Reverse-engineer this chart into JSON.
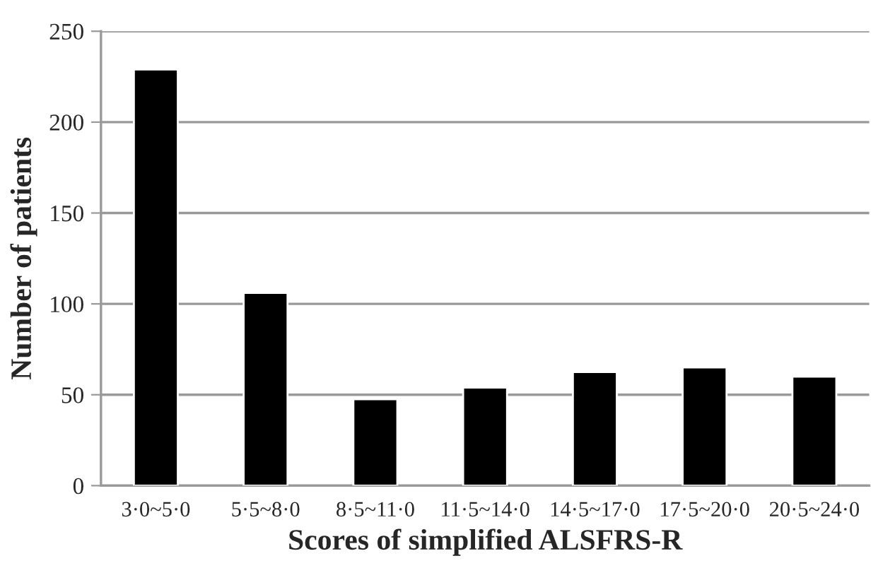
{
  "chart_data": {
    "type": "bar",
    "xlabel": "Scores of simplified ALSFRS-R",
    "ylabel": "Number of patients",
    "categories": [
      "3·0~5·0",
      "5·5~8·0",
      "8·5~11·0",
      "11·5~14·0",
      "14·5~17·0",
      "17·5~20·0",
      "20·5~24·0"
    ],
    "values": [
      229,
      106,
      47.5,
      54,
      62.5,
      65,
      60
    ],
    "color": "#000000",
    "ylim": [
      0,
      250
    ],
    "yticks": [
      0,
      50,
      100,
      150,
      200,
      250
    ],
    "grid": "y"
  }
}
